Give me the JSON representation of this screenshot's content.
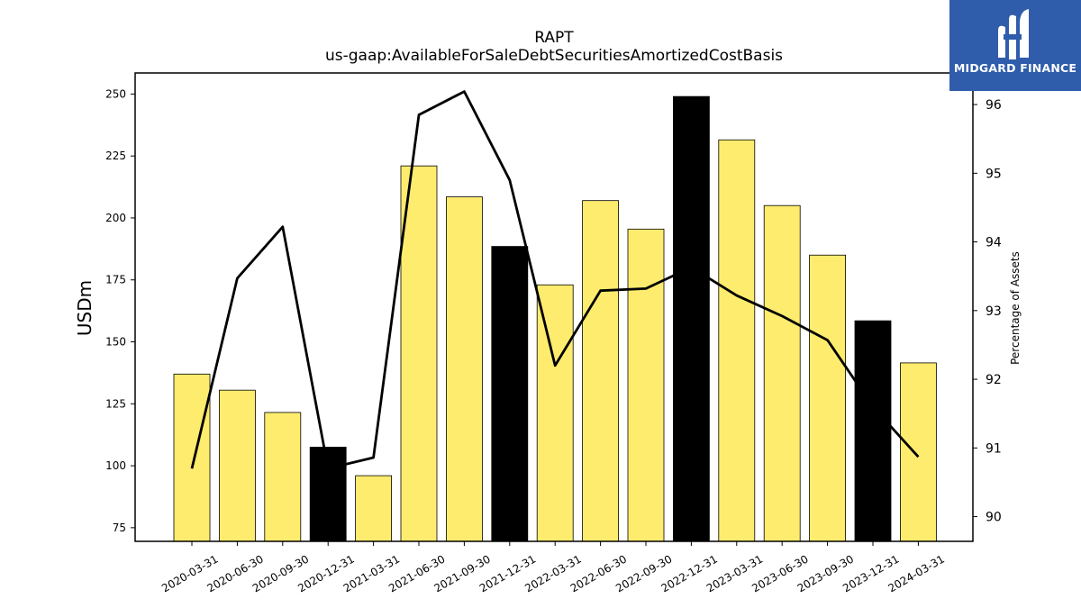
{
  "chart_data": {
    "type": "bar",
    "title": "RAPT",
    "subtitle": "us-gaap:AvailableForSaleDebtSecuritiesAmortizedCostBasis",
    "ylabel": "USDm",
    "ylabel_right": "Percentage of Assets",
    "categories": [
      "2020-03-31",
      "2020-06-30",
      "2020-09-30",
      "2020-12-31",
      "2021-03-31",
      "2021-06-30",
      "2021-09-30",
      "2021-12-31",
      "2022-03-31",
      "2022-06-30",
      "2022-09-30",
      "2022-12-31",
      "2023-03-31",
      "2023-06-30",
      "2023-09-30",
      "2023-12-31",
      "2024-03-31"
    ],
    "values": [
      137,
      130.5,
      121.5,
      107.5,
      96,
      221,
      208.5,
      188.5,
      173,
      207,
      195.5,
      249,
      231.5,
      205,
      185,
      158.5,
      141.5
    ],
    "highlight": [
      false,
      false,
      false,
      true,
      false,
      false,
      false,
      true,
      false,
      false,
      false,
      true,
      false,
      false,
      false,
      true,
      false
    ],
    "line_series": {
      "axis": "right",
      "values": [
        90.7,
        93.47,
        94.22,
        90.7,
        90.86,
        95.85,
        96.19,
        94.9,
        92.2,
        93.29,
        93.32,
        93.63,
        93.22,
        92.92,
        92.57,
        91.6,
        90.87
      ]
    },
    "ylim": [
      69.5,
      258.5
    ],
    "yticks": [
      75,
      100,
      125,
      150,
      175,
      200,
      225,
      250
    ],
    "ylim_right": [
      89.64,
      96.46
    ],
    "yticks_right": [
      90,
      91,
      92,
      93,
      94,
      95,
      96
    ],
    "colors": {
      "bar": "#feec6e",
      "bar_highlight": "#000000",
      "line": "#000000"
    },
    "grid": false,
    "legend": "none"
  },
  "logo": {
    "text": "MIDGARD FINANCE",
    "background": "#2f5dab"
  }
}
